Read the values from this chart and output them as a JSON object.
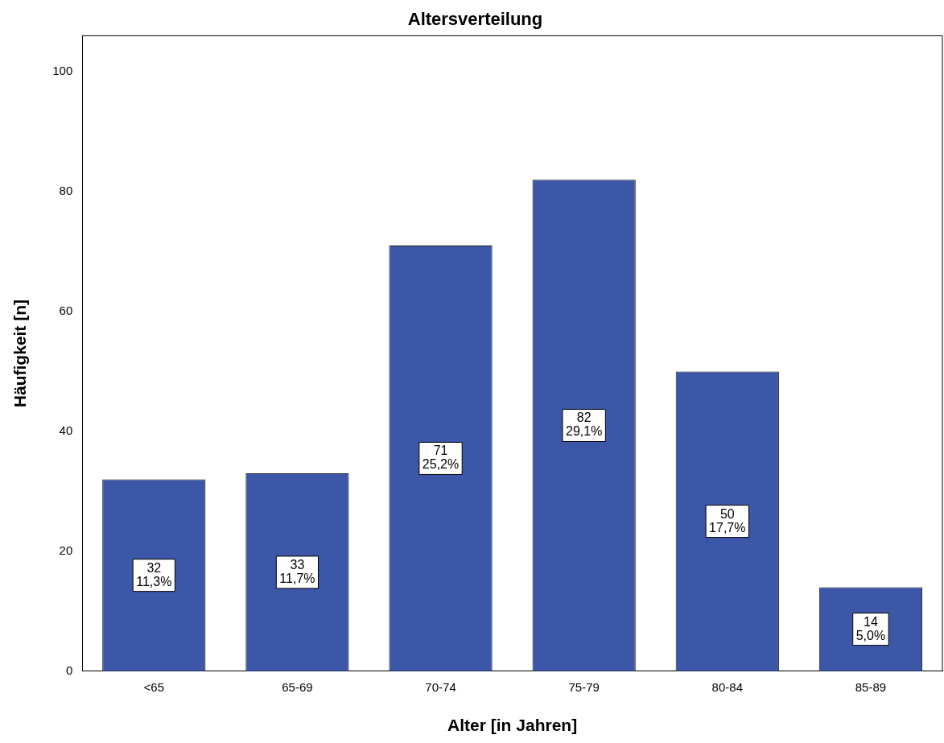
{
  "chart_data": {
    "type": "bar",
    "title": "Altersverteilung",
    "xlabel": "Alter [in Jahren]",
    "ylabel": "Häufigkeit [n]",
    "categories": [
      "<65",
      "65-69",
      "70-74",
      "75-79",
      "80-84",
      "85-89"
    ],
    "values": [
      32,
      33,
      71,
      82,
      50,
      14
    ],
    "color": "#3c56a8",
    "value_labels": [
      "32\n11,3%",
      "33\n11,7%",
      "71\n25,2%",
      "82\n29,1%",
      "50\n17,7%",
      "14\n5,0%"
    ],
    "ylim": [
      0,
      106
    ],
    "yticks": [
      0,
      20,
      40,
      60,
      80,
      100
    ],
    "grid": false,
    "legend": false
  }
}
